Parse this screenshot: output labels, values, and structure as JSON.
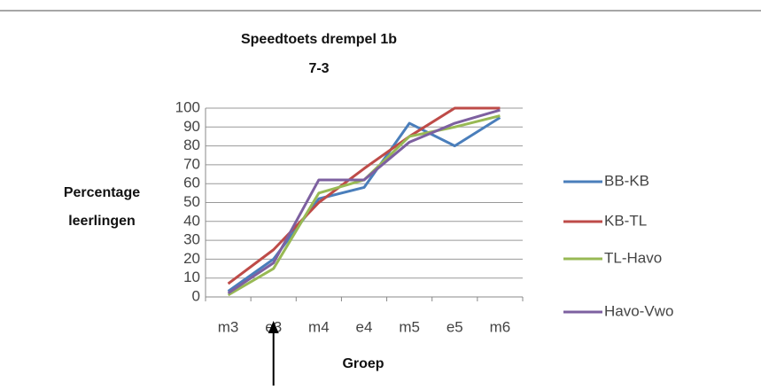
{
  "chart_data": {
    "type": "line",
    "title": "Speedtoets drempel 1b",
    "subtitle": "7-3",
    "x_label": "Groep",
    "y_label": "Percentage leerlingen",
    "categories": [
      "m3",
      "e3",
      "m4",
      "e4",
      "m5",
      "e5",
      "m6"
    ],
    "series": [
      {
        "name": "BB-KB",
        "color": "#4a7ebb",
        "values": [
          3,
          20,
          52,
          58,
          92,
          80,
          95
        ]
      },
      {
        "name": "KB-TL",
        "color": "#be4b48",
        "values": [
          7,
          25,
          50,
          68,
          85,
          100,
          100
        ]
      },
      {
        "name": "TL-Havo",
        "color": "#98b954",
        "values": [
          1,
          15,
          55,
          62,
          85,
          90,
          96
        ]
      },
      {
        "name": "Havo-Vwo",
        "color": "#7d60a0",
        "values": [
          2,
          18,
          62,
          62,
          82,
          92,
          99
        ]
      }
    ],
    "ylim": [
      0,
      100
    ],
    "yticks": [
      0,
      10,
      20,
      30,
      40,
      50,
      60,
      70,
      80,
      90,
      100
    ],
    "grid": true,
    "legend": "right"
  }
}
